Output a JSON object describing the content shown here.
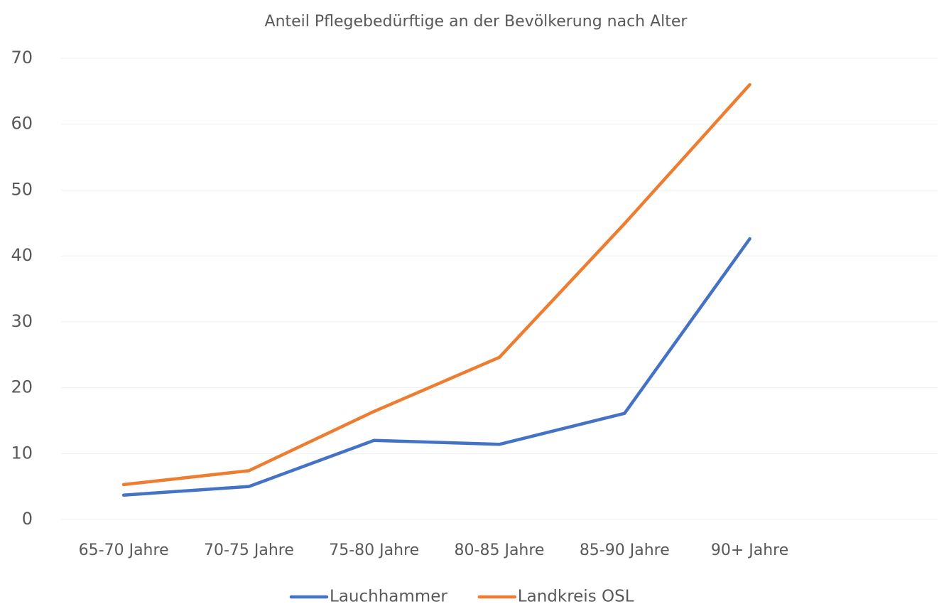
{
  "chart_data": {
    "type": "line",
    "title": "Anteil Pflegebedürftige an der Bevölkerung nach Alter",
    "categories": [
      "65-70 Jahre",
      "70-75 Jahre",
      "75-80 Jahre",
      "80-85 Jahre",
      "85-90 Jahre",
      "90+ Jahre",
      null
    ],
    "series": [
      {
        "name": "Lauchhammer",
        "color": "#4472c4",
        "values": [
          3.7,
          5.0,
          12.0,
          11.4,
          16.1,
          42.6,
          null
        ]
      },
      {
        "name": "Landkreis OSL",
        "color": "#ed7d31",
        "values": [
          5.3,
          7.4,
          16.4,
          24.6,
          44.9,
          66.0,
          null
        ]
      }
    ],
    "ylim": [
      0,
      70
    ],
    "yticks": [
      0,
      10,
      20,
      30,
      40,
      50,
      60,
      70
    ],
    "grid": true,
    "legend": "bottom"
  }
}
